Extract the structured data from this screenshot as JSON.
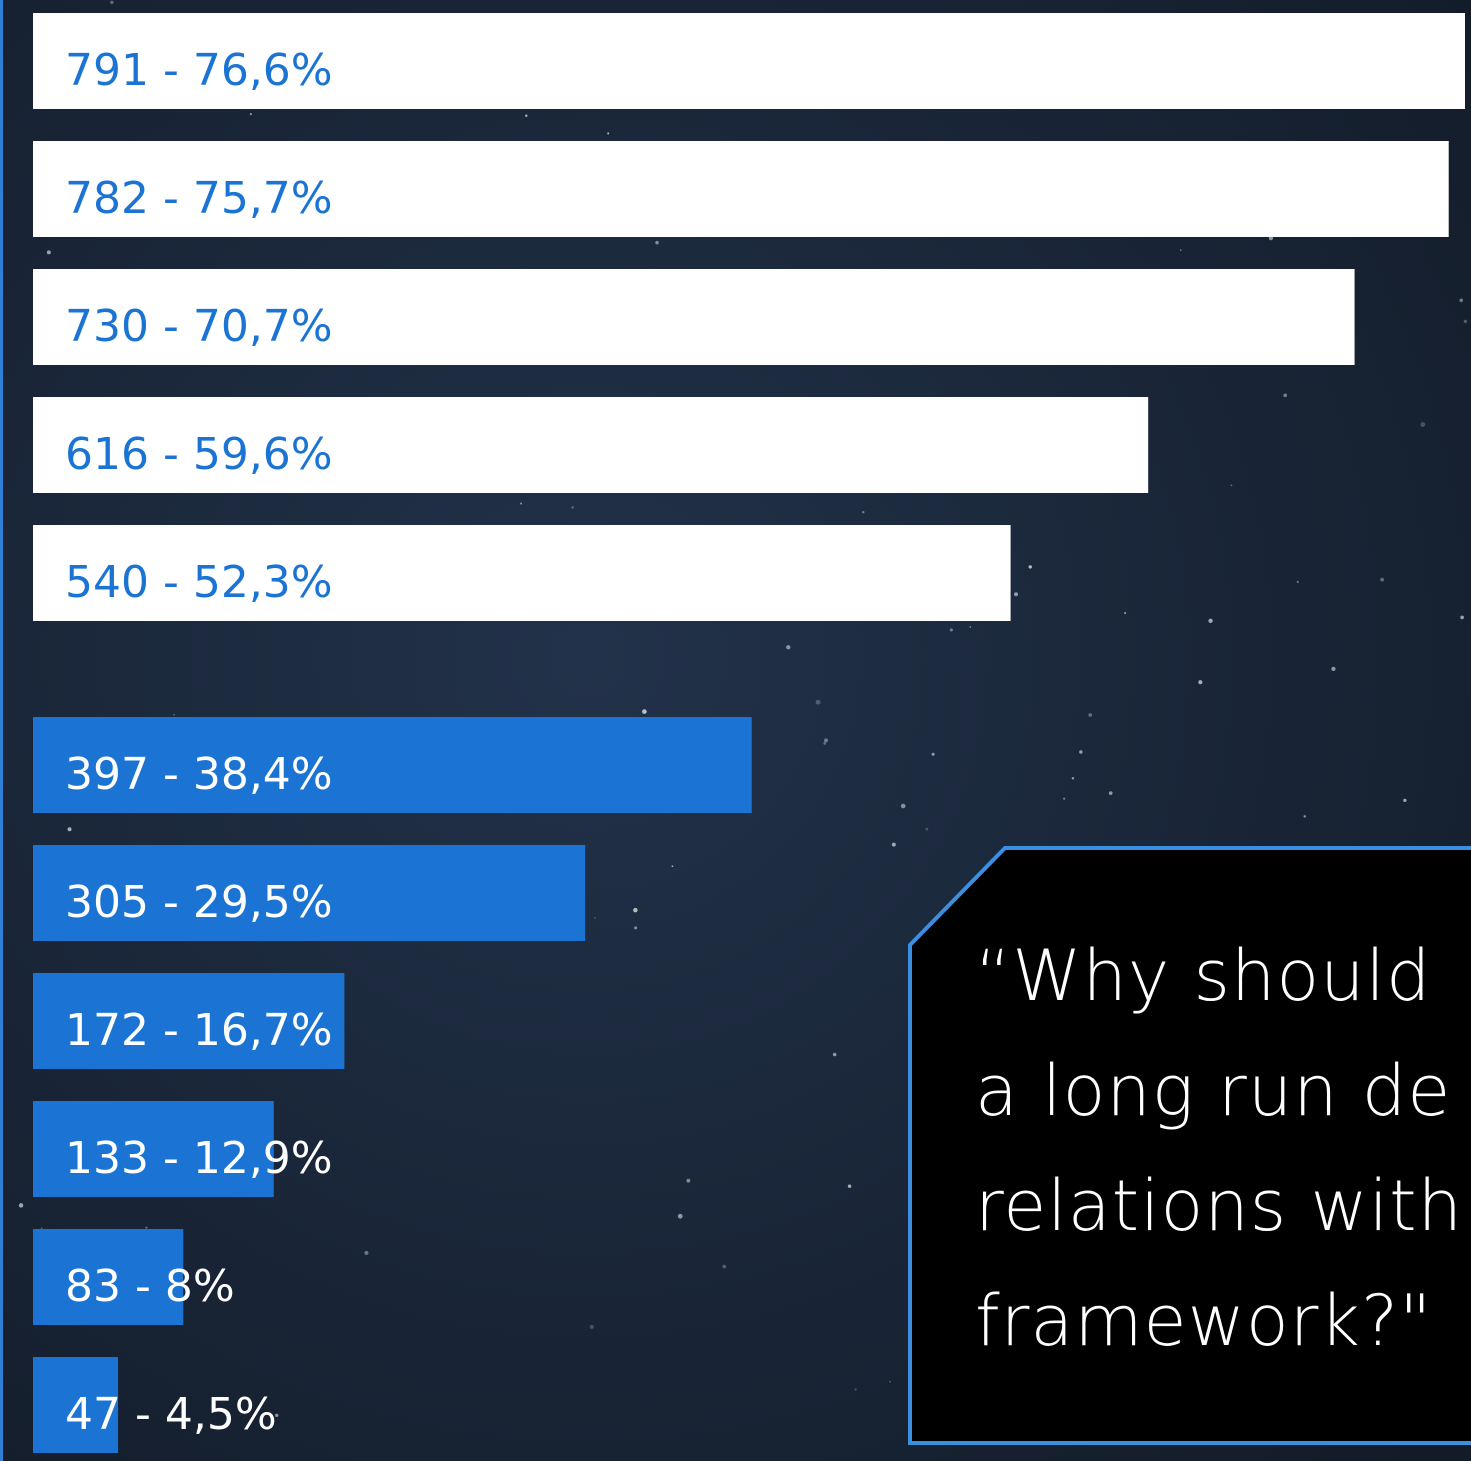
{
  "chart_data": {
    "type": "bar",
    "groups": [
      {
        "color": "#ffffff",
        "label_color": "#1b74d3",
        "values": [
          791,
          782,
          730,
          616,
          540
        ],
        "value_labels": [
          "791 - 76,6%",
          "782 - 75,7%",
          "730 - 70,7%",
          "616 - 59,6%",
          "540 - 52,3%"
        ]
      },
      {
        "color": "#1b74d3",
        "label_color": "#ffffff",
        "values": [
          397,
          305,
          172,
          133,
          83,
          47
        ],
        "value_labels": [
          "397 - 38,4%",
          "305 - 29,5%",
          "172 - 16,7%",
          "133 - 12,9%",
          "83 - 8%",
          "47 - 4,5%"
        ]
      }
    ]
  },
  "callout": {
    "lines": [
      "“Why should",
      "a long run de",
      "relations with",
      "framework?\""
    ]
  }
}
